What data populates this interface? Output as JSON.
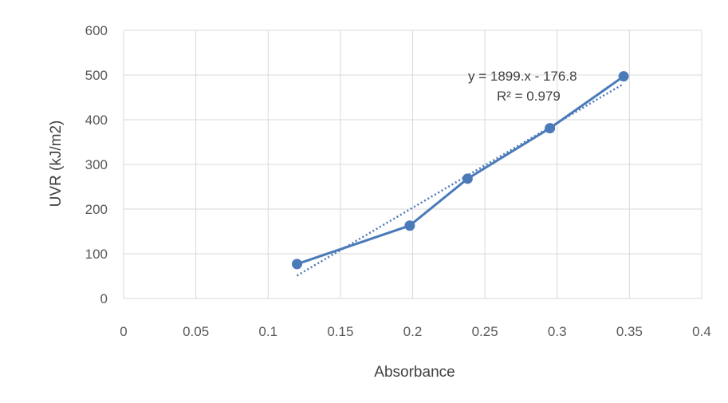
{
  "chart_data": {
    "type": "scatter",
    "xlabel": "Absorbance",
    "ylabel": "UVR (kJ/m2)",
    "xlim": [
      0,
      0.4
    ],
    "ylim": [
      0,
      600
    ],
    "x_ticks": [
      "0",
      "0.05",
      "0.1",
      "0.15",
      "0.2",
      "0.25",
      "0.3",
      "0.35",
      "0.4"
    ],
    "y_ticks": [
      "0",
      "100",
      "200",
      "300",
      "400",
      "500",
      "600"
    ],
    "grid": true,
    "series": [
      {
        "x": [
          0.12,
          0.198,
          0.238,
          0.295,
          0.346
        ],
        "y": [
          77,
          163,
          268,
          381,
          497
        ],
        "color": "#4a7ab8",
        "markers": true,
        "line": "solid"
      }
    ],
    "trendline": {
      "type": "linear",
      "slope": 1899,
      "intercept": -176.8,
      "x_range": [
        0.12,
        0.346
      ],
      "color": "#4a7ab8",
      "line": "dotted",
      "equation": "y = 1899.x - 176.8",
      "r_squared": "R² = 0.979"
    }
  }
}
